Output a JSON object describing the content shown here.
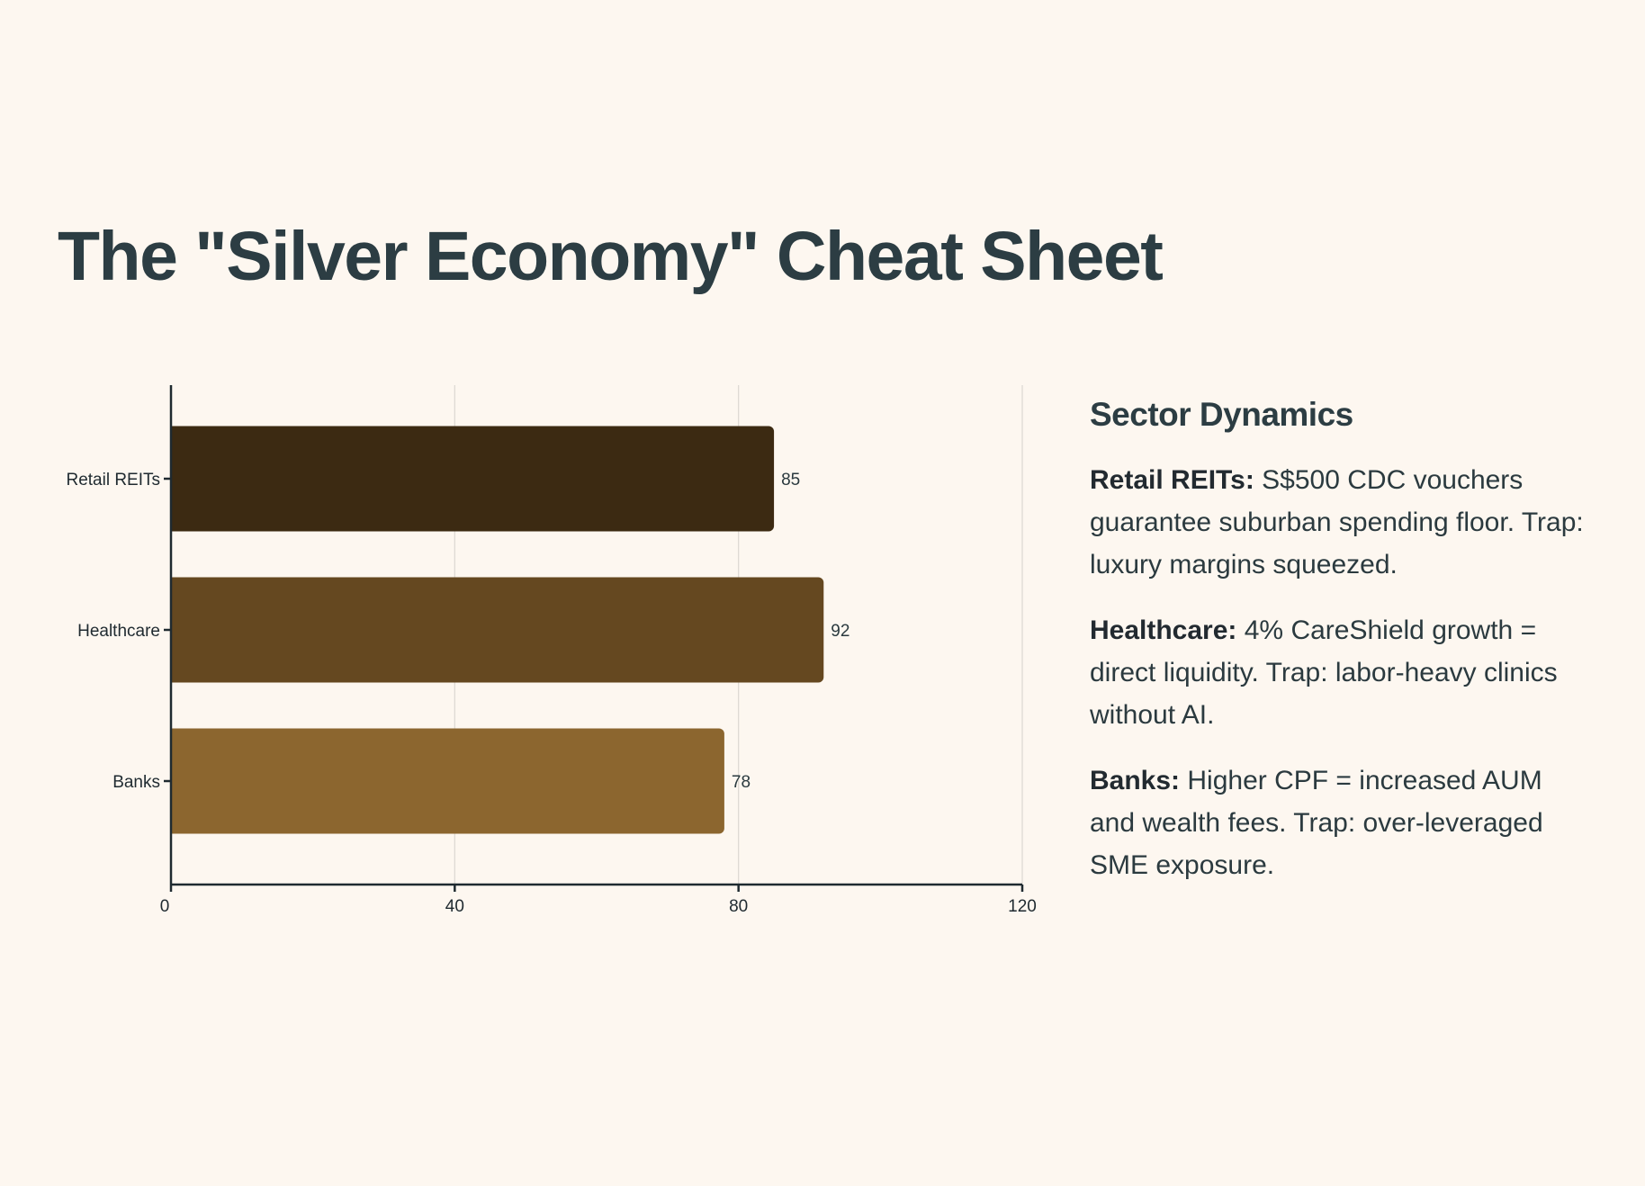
{
  "page": {
    "title": "The \"Silver Economy\" Cheat Sheet"
  },
  "chart_data": {
    "type": "bar",
    "orientation": "horizontal",
    "title": "",
    "xlabel": "",
    "ylabel": "",
    "categories": [
      "Retail REITs",
      "Healthcare",
      "Banks"
    ],
    "values": [
      85,
      92,
      78
    ],
    "colors": [
      "#3c2a12",
      "#654820",
      "#8c662f"
    ],
    "xlim": [
      0,
      120
    ],
    "xticks": [
      0,
      40,
      80,
      120
    ],
    "grid": true
  },
  "sidebar": {
    "title": "Sector Dynamics",
    "notes": [
      {
        "name": "Retail REITs:",
        "text": "S$500 CDC vouchers guarantee suburban spending floor. Trap: luxury margins squeezed."
      },
      {
        "name": "Healthcare:",
        "text": "4% CareShield growth = direct liquidity. Trap: labor-heavy clinics without AI."
      },
      {
        "name": "Banks:",
        "text": "Higher CPF = increased AUM and wealth fees. Trap: over-leveraged SME exposure."
      }
    ]
  }
}
